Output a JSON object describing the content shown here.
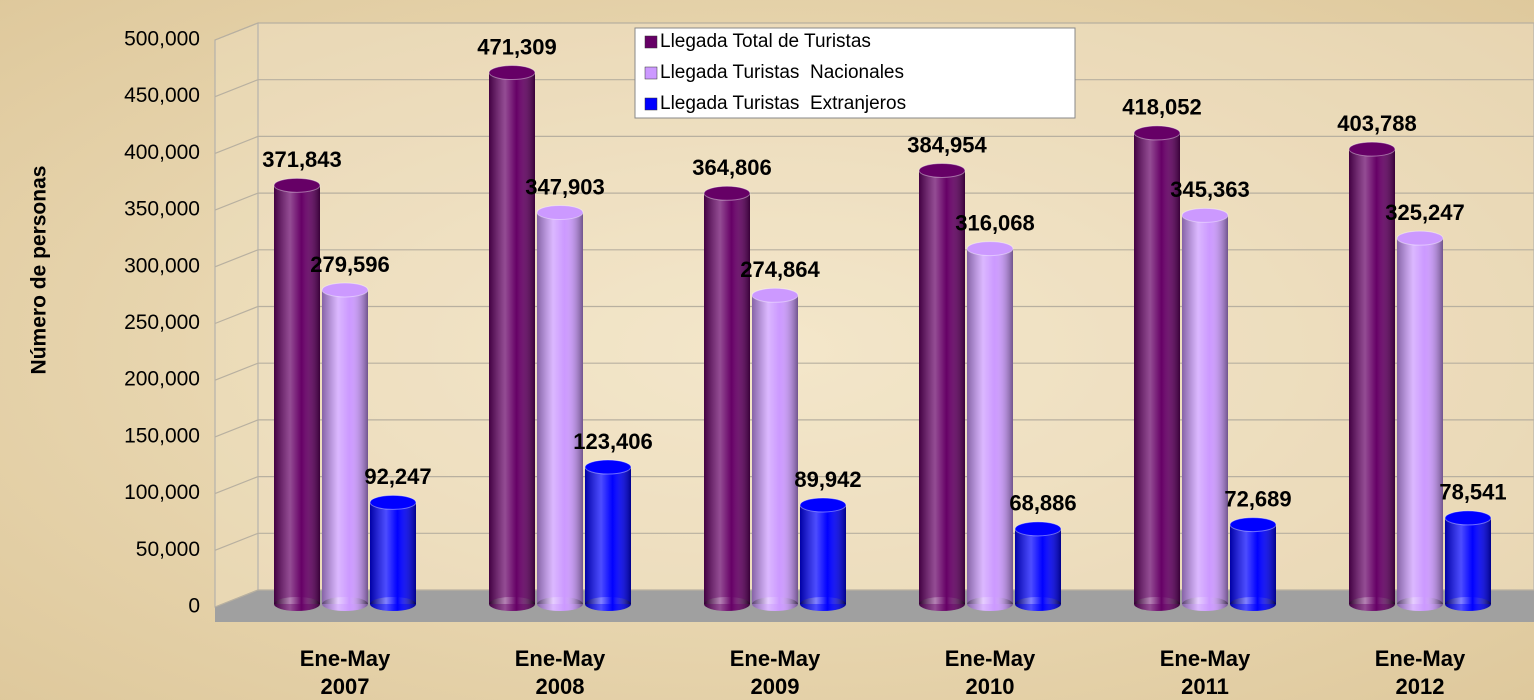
{
  "chart_data": {
    "type": "bar3d",
    "y_label": "Número de personas",
    "categories": [
      [
        "Ene-May",
        "2007"
      ],
      [
        "Ene-May",
        "2008"
      ],
      [
        "Ene-May",
        "2009"
      ],
      [
        "Ene-May",
        "2010"
      ],
      [
        "Ene-May",
        "2011"
      ],
      [
        "Ene-May",
        "2012"
      ]
    ],
    "series": [
      {
        "name": "Llegada Total de Turistas",
        "color": "#660066",
        "values": [
          371843,
          471309,
          364806,
          384954,
          418052,
          403788
        ],
        "value_labels": [
          "371,843",
          "471,309",
          "364,806",
          "384,954",
          "418,052",
          "403,788"
        ]
      },
      {
        "name": "Llegada Turistas  Nacionales",
        "color": "#cc99ff",
        "values": [
          279596,
          347903,
          274864,
          316068,
          345363,
          325247
        ],
        "value_labels": [
          "279,596",
          "347,903",
          "274,864",
          "316,068",
          "345,363",
          "325,247"
        ]
      },
      {
        "name": "Llegada Turistas  Extranjeros",
        "color": "#0000ff",
        "values": [
          92247,
          123406,
          89942,
          68886,
          72689,
          78541
        ],
        "value_labels": [
          "92,247",
          "123,406",
          "89,942",
          "68,886",
          "72,689",
          "78,541"
        ]
      }
    ],
    "ylim": [
      0,
      500000
    ],
    "yticks": [
      0,
      {
        "value": 50000,
        "label": "50,000"
      },
      {
        "value": 100000,
        "label": "100,000"
      },
      {
        "value": 150000,
        "label": "150,000"
      },
      {
        "value": 200000,
        "label": "200,000"
      },
      {
        "value": 250000,
        "label": "250,000"
      },
      {
        "value": 300000,
        "label": "300,000"
      },
      {
        "value": 350000,
        "label": "350,000"
      },
      {
        "value": 400000,
        "label": "400,000"
      },
      {
        "value": 450000,
        "label": "450,000"
      },
      {
        "value": 500000,
        "label": "500,000"
      }
    ],
    "grid": true
  }
}
